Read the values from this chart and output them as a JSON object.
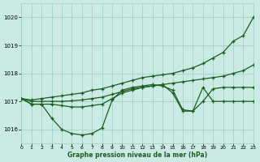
{
  "xlabel": "Graphe pression niveau de la mer (hPa)",
  "bg_color": "#cceae4",
  "grid_color": "#99ccc4",
  "line_color": "#1a5e20",
  "ylim": [
    1015.5,
    1020.5
  ],
  "xlim": [
    0,
    23
  ],
  "yticks": [
    1016,
    1017,
    1018,
    1019,
    1020
  ],
  "xticks": [
    0,
    1,
    2,
    3,
    4,
    5,
    6,
    7,
    8,
    9,
    10,
    11,
    12,
    13,
    14,
    15,
    16,
    17,
    18,
    19,
    20,
    21,
    22,
    23
  ],
  "series_steep_x": [
    0,
    1,
    2,
    3,
    4,
    5,
    6,
    7,
    8,
    9,
    10,
    11,
    12,
    13,
    14,
    15,
    16,
    17,
    18,
    19,
    20,
    21,
    22,
    23
  ],
  "series_steep_y": [
    1017.1,
    1017.05,
    1017.1,
    1017.15,
    1017.2,
    1017.25,
    1017.3,
    1017.4,
    1017.45,
    1017.55,
    1017.65,
    1017.75,
    1017.85,
    1017.9,
    1017.95,
    1018.0,
    1018.1,
    1018.2,
    1018.35,
    1018.55,
    1018.75,
    1019.15,
    1019.35,
    1020.0
  ],
  "series_grad_x": [
    0,
    1,
    2,
    3,
    4,
    5,
    6,
    7,
    8,
    9,
    10,
    11,
    12,
    13,
    14,
    15,
    16,
    17,
    18,
    19,
    20,
    21,
    22,
    23
  ],
  "series_grad_y": [
    1017.1,
    1017.0,
    1017.0,
    1017.0,
    1017.0,
    1017.02,
    1017.05,
    1017.1,
    1017.15,
    1017.25,
    1017.35,
    1017.45,
    1017.5,
    1017.55,
    1017.6,
    1017.65,
    1017.7,
    1017.75,
    1017.8,
    1017.85,
    1017.9,
    1018.0,
    1018.1,
    1018.3
  ],
  "series_dip1_x": [
    0,
    1,
    2,
    3,
    4,
    5,
    6,
    7,
    8,
    9,
    10,
    11,
    12,
    13,
    14,
    15,
    16,
    17,
    18,
    19,
    20,
    21,
    22,
    23
  ],
  "series_dip1_y": [
    1017.1,
    1016.9,
    1016.9,
    1016.4,
    1016.0,
    1015.85,
    1015.8,
    1015.85,
    1016.05,
    1017.05,
    1017.4,
    1017.5,
    1017.55,
    1017.6,
    1017.55,
    1017.4,
    1016.7,
    1016.65,
    1017.5,
    1017.0,
    1017.0,
    1017.0,
    1017.0,
    1017.0
  ],
  "series_dip2_x": [
    0,
    1,
    2,
    3,
    4,
    5,
    6,
    7,
    8,
    9,
    10,
    11,
    12,
    13,
    14,
    15,
    16,
    17,
    18,
    19,
    20,
    21,
    22,
    23
  ],
  "series_dip2_y": [
    1017.1,
    1016.9,
    1016.9,
    1016.9,
    1016.85,
    1016.8,
    1016.8,
    1016.85,
    1016.9,
    1017.1,
    1017.3,
    1017.4,
    1017.5,
    1017.55,
    1017.6,
    1017.3,
    1016.65,
    1016.65,
    1017.0,
    1017.45,
    1017.5,
    1017.5,
    1017.5,
    1017.5
  ]
}
